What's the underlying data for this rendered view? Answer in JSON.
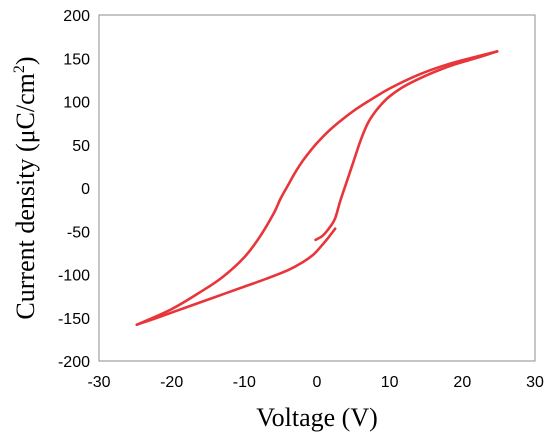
{
  "chart_data": {
    "type": "line",
    "title": "",
    "xlabel": "Voltage (V)",
    "ylabel_main": "Current density (μC/cm",
    "ylabel_sup": "2",
    "ylabel_close": ")",
    "xlim": [
      -30,
      30
    ],
    "ylim": [
      -200,
      200
    ],
    "x_ticks": [
      -30,
      -20,
      -10,
      0,
      10,
      20,
      30
    ],
    "y_ticks": [
      -200,
      -150,
      -100,
      -50,
      0,
      50,
      100,
      150,
      200
    ],
    "grid": false,
    "legend": "none",
    "series_color": "#e8353a",
    "series": [
      {
        "x": [
          -0.2,
          0.8,
          1.8,
          2.5,
          3.2,
          4.0,
          5.0,
          6.0,
          7.0,
          8.0,
          9.0,
          10.0,
          11.5,
          13.0,
          15.0,
          17.0,
          19.0,
          21.0,
          23.0,
          24.8
        ],
        "y": [
          -60,
          -55,
          -45,
          -35,
          -15,
          5,
          30,
          55,
          75,
          88,
          98,
          106,
          115,
          122,
          130,
          137,
          143,
          148,
          153,
          158
        ]
      },
      {
        "x": [
          24.8,
          22.0,
          18.0,
          14.0,
          10.0,
          7.0,
          5.0,
          3.0,
          1.5,
          0.0,
          -1.0,
          -2.0,
          -3.0,
          -4.0,
          -5.0,
          -6.0,
          -8.0,
          -10.0,
          -13.0,
          -16.0,
          -20.0,
          -24.8
        ],
        "y": [
          158,
          152,
          143,
          131,
          115,
          100,
          89,
          76,
          65,
          52,
          42,
          31,
          18,
          3,
          -12,
          -30,
          -58,
          -80,
          -103,
          -120,
          -140,
          -158
        ]
      },
      {
        "x": [
          -24.8,
          -22.0,
          -18.0,
          -14.0,
          -10.0,
          -7.0,
          -4.0,
          -2.0,
          -0.5,
          0.5,
          1.5,
          2.5
        ],
        "y": [
          -158,
          -150,
          -138,
          -126,
          -114,
          -105,
          -95,
          -86,
          -77,
          -68,
          -58,
          -47
        ]
      }
    ]
  }
}
